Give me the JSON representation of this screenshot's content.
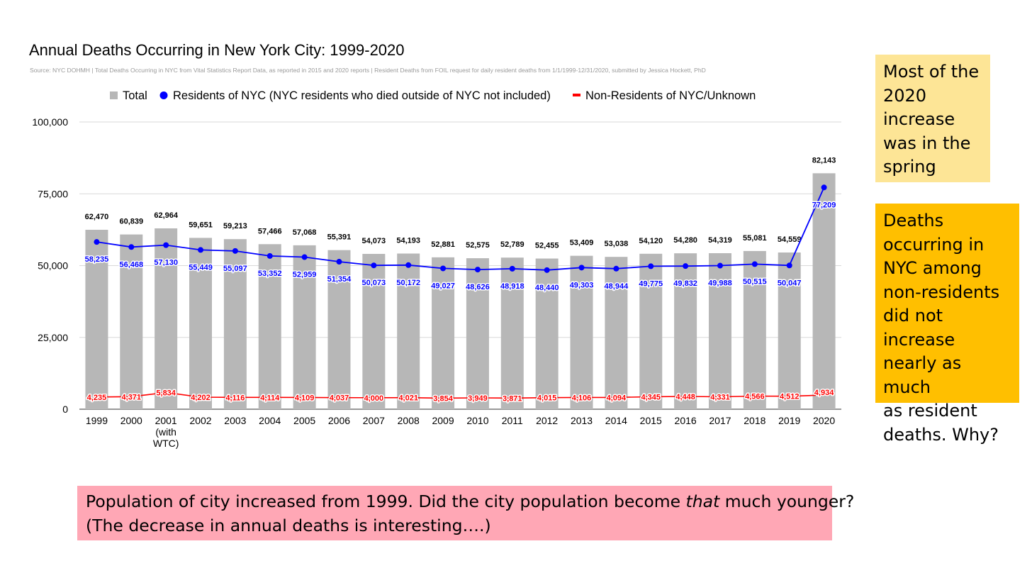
{
  "chart_data": {
    "type": "bar",
    "title": "Annual Deaths Occurring in New York City: 1999-2020",
    "subtitle": "Source: NYC DOHMH | Total Deaths Occurring in NYC from Vital Statistics Report Data, as reported in 2015 and 2020 reports | Resident Deaths from FOIL request for daily resident deaths from 1/1/1999-12/31/2020, submitted by Jessica Hockett, PhD",
    "categories": [
      [
        "1999"
      ],
      [
        "2000"
      ],
      [
        "2001",
        "(with",
        "WTC)"
      ],
      [
        "2002"
      ],
      [
        "2003"
      ],
      [
        "2004"
      ],
      [
        "2005"
      ],
      [
        "2006"
      ],
      [
        "2007"
      ],
      [
        "2008"
      ],
      [
        "2009"
      ],
      [
        "2010"
      ],
      [
        "2011"
      ],
      [
        "2012"
      ],
      [
        "2013"
      ],
      [
        "2014"
      ],
      [
        "2015"
      ],
      [
        "2016"
      ],
      [
        "2017"
      ],
      [
        "2018"
      ],
      [
        "2019"
      ],
      [
        "2020"
      ]
    ],
    "series": [
      {
        "name": "Total",
        "kind": "bar",
        "color": "#b7b7b7",
        "values": [
          62470,
          60839,
          62964,
          59651,
          59213,
          57466,
          57068,
          55391,
          54073,
          54193,
          52881,
          52575,
          52789,
          52455,
          53409,
          53038,
          54120,
          54280,
          54319,
          55081,
          54559,
          82143
        ],
        "labels": [
          "62,470",
          "60,839",
          "62,964",
          "59,651",
          "59,213",
          "57,466",
          "57,068",
          "55,391",
          "54,073",
          "54,193",
          "52,881",
          "52,575",
          "52,789",
          "52,455",
          "53,409",
          "53,038",
          "54,120",
          "54,280",
          "54,319",
          "55,081",
          "54,559",
          "82,143"
        ]
      },
      {
        "name": "Residents of NYC (NYC residents who died outside of NYC not included)",
        "kind": "line",
        "color": "#0000ff",
        "values": [
          58235,
          56468,
          57130,
          55449,
          55097,
          53352,
          52959,
          51354,
          50073,
          50172,
          49027,
          48626,
          48918,
          48440,
          49303,
          48944,
          49775,
          49832,
          49988,
          50515,
          50047,
          77209
        ],
        "labels": [
          "58,235",
          "56,468",
          "57,130",
          "55,449",
          "55,097",
          "53,352",
          "52,959",
          "51,354",
          "50,073",
          "50,172",
          "49,027",
          "48,626",
          "48,918",
          "48,440",
          "49,303",
          "48,944",
          "49,775",
          "49,832",
          "49,988",
          "50,515",
          "50,047",
          "77,209"
        ]
      },
      {
        "name": "Non-Residents of NYC/Unknown",
        "kind": "line",
        "color": "#ff0000",
        "values": [
          4235,
          4371,
          5834,
          4202,
          4116,
          4114,
          4109,
          4037,
          4000,
          4021,
          3854,
          3949,
          3871,
          4015,
          4106,
          4094,
          4345,
          4448,
          4331,
          4566,
          4512,
          4934
        ],
        "labels": [
          "4,235",
          "4,371",
          "5,834",
          "4,202",
          "4,116",
          "4,114",
          "4,109",
          "4,037",
          "4,000",
          "4,021",
          "3,854",
          "3,949",
          "3,871",
          "4,015",
          "4,106",
          "4,094",
          "4,345",
          "4,448",
          "4,331",
          "4,566",
          "4,512",
          "4,934"
        ]
      }
    ],
    "yticks": [
      0,
      25000,
      50000,
      75000,
      100000
    ],
    "ytick_labels": [
      "0",
      "25,000",
      "50,000",
      "75,000",
      "100,000"
    ],
    "ylim": [
      0,
      100000
    ],
    "grid": true,
    "legend": "top"
  },
  "callouts": {
    "spring": [
      "Most of the",
      "2020",
      "increase",
      "was in the",
      "spring"
    ],
    "nonresidents": [
      "Deaths",
      "occurring in",
      "NYC among",
      "non-residents",
      "did not increase",
      "nearly as much",
      "as resident",
      "deaths. Why?"
    ],
    "population": {
      "line1_before": "Population of city increased from 1999. Did the city population become ",
      "line1_emphasis": "that",
      "line1_after": " much younger?",
      "line2": "(The decrease in annual deaths is interesting….)"
    }
  }
}
